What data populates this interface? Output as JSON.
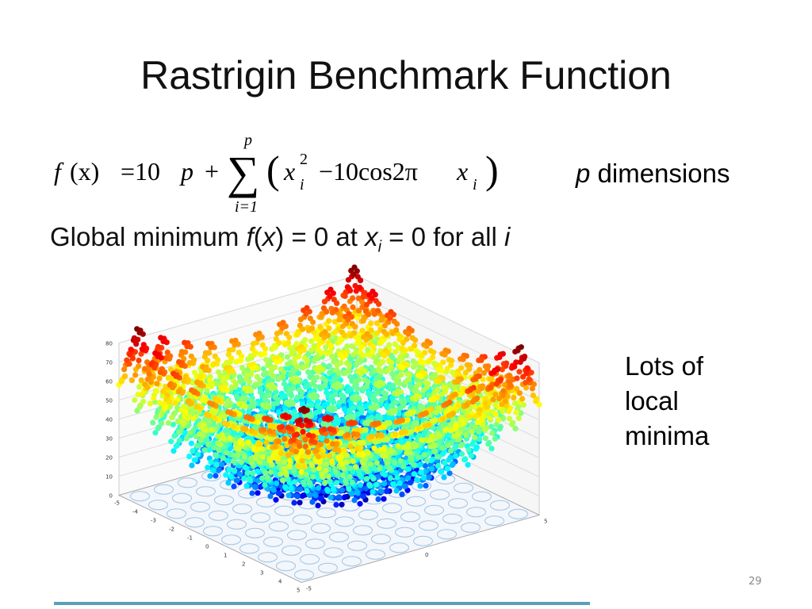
{
  "slide": {
    "title": "Rastrigin Benchmark Function",
    "formula": {
      "f": "f",
      "arg": "(x)",
      "eq": "=10",
      "p": "p",
      "plus": "+",
      "sum": "∑",
      "sum_top": "p",
      "sum_bottom": "i=1",
      "open": "(",
      "x1": "x",
      "sup": "2",
      "sub1": "i",
      "mid": "−10cos2π",
      "x2": "x",
      "sub2": "i",
      "close": ")"
    },
    "dimensions": {
      "p": "p",
      "rest": " dimensions"
    },
    "global": {
      "a": "Global minimum ",
      "f": "f",
      "b": "(",
      "x": "x",
      "c": ") = 0 at ",
      "x2": "x",
      "i": "i",
      "d": " = 0 for all ",
      "i2": "i"
    },
    "note": [
      "Lots of",
      "local",
      "minima"
    ],
    "plot": {
      "z_ticks": [
        "80",
        "70",
        "60",
        "50",
        "40",
        "30",
        "20",
        "10",
        "0"
      ],
      "x_ticks": [
        "-5",
        "-4",
        "-3",
        "-2",
        "-1",
        "0",
        "1",
        "2",
        "3",
        "4",
        "5"
      ],
      "y_ticks": [
        "5",
        "0",
        "-5"
      ]
    },
    "page_number": "29"
  }
}
